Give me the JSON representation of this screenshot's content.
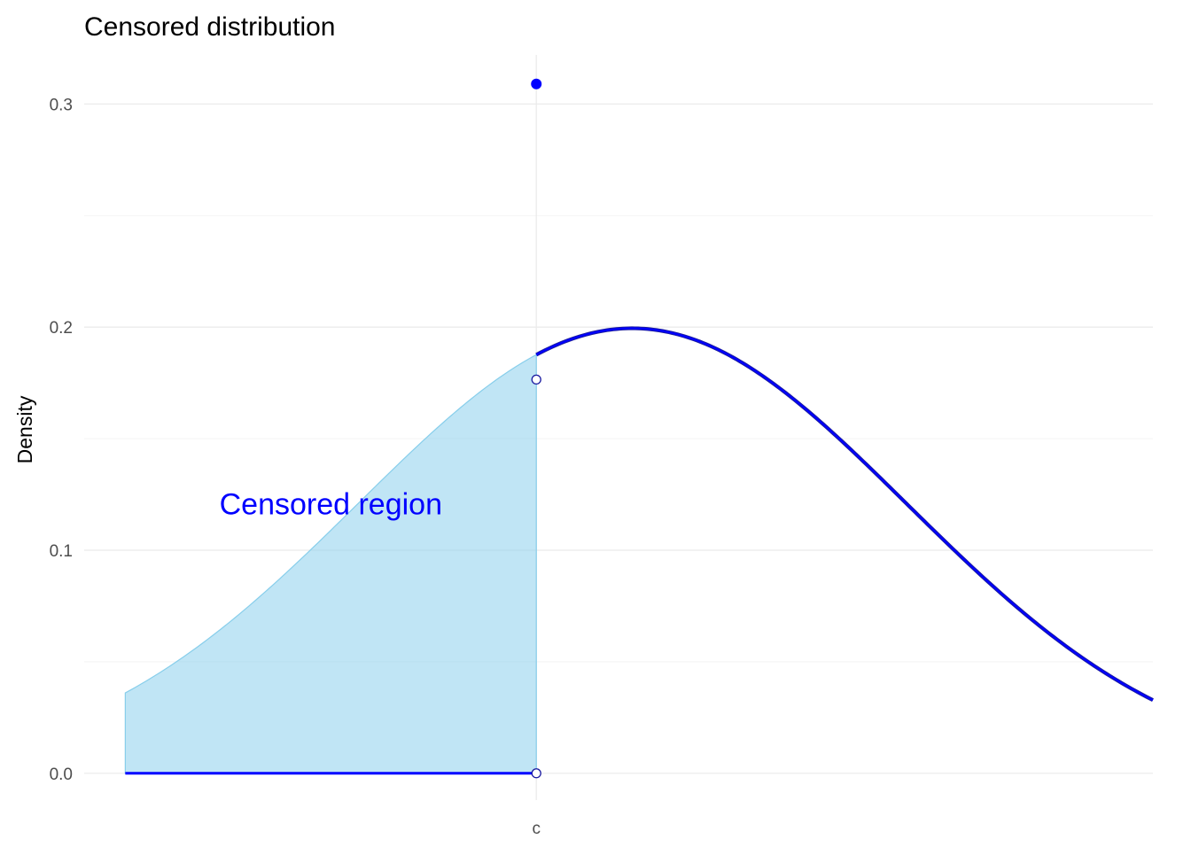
{
  "chart_data": {
    "type": "line",
    "title": "Censored distribution",
    "xlabel": "",
    "ylabel": "Density",
    "ylim": [
      -0.012,
      0.322
    ],
    "yticks": [
      {
        "value": 0.0,
        "label": "0.0"
      },
      {
        "value": 0.1,
        "label": "0.1"
      },
      {
        "value": 0.2,
        "label": "0.2"
      },
      {
        "value": 0.3,
        "label": "0.3"
      }
    ],
    "y_minor_ticks": [
      0.05,
      0.15,
      0.25
    ],
    "xlim": [
      -4.3,
      3.5
    ],
    "xticks": [
      {
        "value": -1.0,
        "label": "c"
      }
    ],
    "grid": true,
    "distribution": {
      "family": "normal",
      "mean": -0.3,
      "sd": 2,
      "x_from": -4.0,
      "x_to": 3.5,
      "censor_point": -1.0
    },
    "censored_mass_point": {
      "x": -1.0,
      "y": 0.309
    },
    "curve_start_open_point": {
      "x": -1.0,
      "y": 0.1765
    },
    "floor_open_point": {
      "x": -1.0,
      "y": 0.0
    },
    "annotation": {
      "text": "Censored region",
      "x": -2.5,
      "y": 0.116
    },
    "colors": {
      "curve": "#0000ff",
      "shaded_region": "#87ceeb",
      "annotation": "#0000ff"
    }
  }
}
